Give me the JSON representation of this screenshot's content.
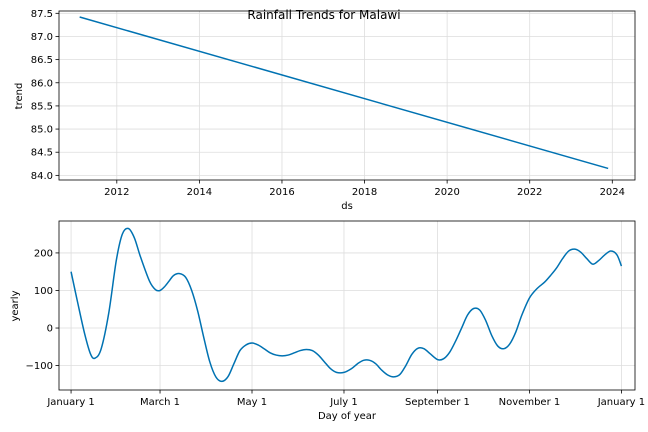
{
  "title": "Rainfall Trends for Malawi",
  "colors": {
    "line": "#0072B2",
    "grid": "#dddddd"
  },
  "chart_data": [
    {
      "type": "line",
      "title": "Rainfall Trends for Malawi",
      "xlabel": "ds",
      "ylabel": "trend",
      "grid": true,
      "xlim": [
        2010.6,
        2024.55
      ],
      "ylim": [
        83.9,
        87.55
      ],
      "x_ticks": [
        2012,
        2014,
        2016,
        2018,
        2020,
        2022,
        2024
      ],
      "x_tick_labels": [
        "2012",
        "2014",
        "2016",
        "2018",
        "2020",
        "2022",
        "2024"
      ],
      "y_ticks": [
        84.0,
        84.5,
        85.0,
        85.5,
        86.0,
        86.5,
        87.0,
        87.5
      ],
      "y_tick_labels": [
        "84.0",
        "84.5",
        "85.0",
        "85.5",
        "86.0",
        "86.5",
        "87.0",
        "87.5"
      ],
      "series": [
        {
          "x": [
            2011.1,
            2023.9
          ],
          "values": [
            87.42,
            84.15
          ]
        }
      ]
    },
    {
      "type": "line",
      "xlabel": "Day of year",
      "ylabel": "yearly",
      "grid": true,
      "xlim": [
        -8,
        374
      ],
      "ylim": [
        -165,
        285
      ],
      "x_ticks": [
        0,
        59,
        120,
        181,
        243,
        304,
        365
      ],
      "x_tick_labels": [
        "January 1",
        "March 1",
        "May 1",
        "July 1",
        "September 1",
        "November 1",
        "January 1"
      ],
      "y_ticks": [
        -100,
        0,
        100,
        200
      ],
      "y_tick_labels": [
        "−100",
        "0",
        "100",
        "200"
      ],
      "series": [
        {
          "x": [
            0,
            4,
            9,
            13,
            16,
            20,
            25,
            30,
            34,
            38,
            42,
            46,
            52,
            56,
            59,
            62,
            65,
            68,
            72,
            76,
            80,
            84,
            88,
            92,
            96,
            100,
            104,
            108,
            112,
            116,
            120,
            124,
            128,
            132,
            136,
            140,
            144,
            148,
            152,
            156,
            160,
            164,
            168,
            172,
            176,
            181,
            186,
            190,
            194,
            198,
            202,
            206,
            210,
            214,
            218,
            222,
            226,
            230,
            234,
            238,
            243,
            247,
            251,
            255,
            259,
            263,
            267,
            271,
            275,
            279,
            283,
            287,
            291,
            295,
            299,
            304,
            309,
            314,
            318,
            322,
            326,
            330,
            334,
            338,
            342,
            346,
            350,
            354,
            358,
            362,
            365
          ],
          "values": [
            150,
            75,
            -15,
            -70,
            -80,
            -55,
            40,
            180,
            250,
            265,
            240,
            190,
            125,
            102,
            100,
            110,
            125,
            140,
            145,
            135,
            100,
            45,
            -25,
            -90,
            -130,
            -142,
            -130,
            -95,
            -60,
            -45,
            -40,
            -45,
            -55,
            -66,
            -72,
            -74,
            -72,
            -66,
            -60,
            -57,
            -60,
            -72,
            -90,
            -108,
            -118,
            -118,
            -108,
            -95,
            -86,
            -86,
            -95,
            -112,
            -125,
            -130,
            -124,
            -100,
            -70,
            -54,
            -55,
            -68,
            -84,
            -82,
            -65,
            -35,
            0,
            35,
            52,
            48,
            20,
            -20,
            -48,
            -55,
            -42,
            -10,
            35,
            80,
            105,
            122,
            140,
            160,
            185,
            205,
            210,
            202,
            185,
            170,
            180,
            195,
            205,
            195,
            165
          ]
        }
      ]
    }
  ]
}
